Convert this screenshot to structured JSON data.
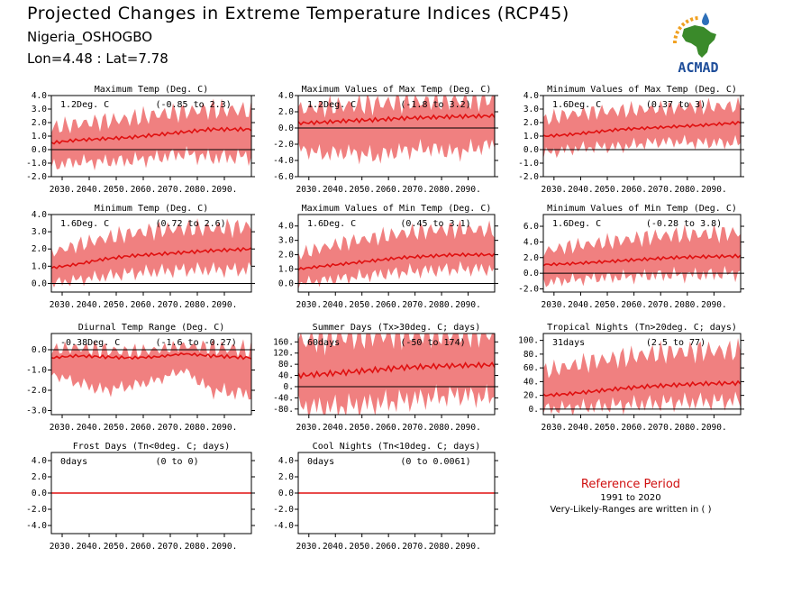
{
  "header": {
    "title": "Projected Changes in Extreme Temperature Indices (RCP45)",
    "station": "Nigeria_OSHOGBO",
    "coords": "Lon=4.48 : Lat=7.78"
  },
  "logo": {
    "text": "ACMAD",
    "colors": {
      "africa": "#3a8a2a",
      "drop": "#2d6fb8",
      "sun": "#f0a020",
      "text": "#1f4e9a"
    }
  },
  "reference": {
    "title": "Reference Period",
    "years": "1991 to 2020",
    "note": "Very-Likely-Ranges are written in ( )"
  },
  "colors": {
    "band": "#f08080",
    "line": "#e01010",
    "zero": "#000000"
  },
  "chart_data": [
    {
      "type": "area",
      "title": "Maximum Temp (Deg. C)",
      "mean_label": "1.2Deg. C",
      "range_label": "(-0.85 to 2.3)",
      "xlim": [
        2026,
        2100
      ],
      "xticks": [
        2030,
        2040,
        2050,
        2060,
        2070,
        2080,
        2090
      ],
      "xtick_labels": [
        "2030.",
        "2040.",
        "2050.",
        "2060.",
        "2070.",
        "2080.",
        "2090."
      ],
      "ylim": [
        -2,
        4
      ],
      "yticks": [
        -2,
        -1,
        0,
        1,
        2,
        3,
        4
      ],
      "ytick_labels": [
        "-2.0",
        "-1.0",
        "0.0",
        "1.0",
        "2.0",
        "3.0",
        "4.0"
      ],
      "x": [
        2026,
        2035,
        2045,
        2055,
        2065,
        2075,
        2085,
        2100
      ],
      "mean": [
        0.5,
        0.7,
        0.8,
        0.9,
        1.1,
        1.3,
        1.5,
        1.5
      ],
      "upper": [
        1.6,
        1.9,
        2.1,
        2.3,
        2.6,
        2.8,
        3.0,
        2.9
      ],
      "lower": [
        -1.2,
        -0.9,
        -0.9,
        -0.8,
        -0.6,
        -0.3,
        -0.6,
        -0.5
      ]
    },
    {
      "type": "area",
      "title": "Maximum Values of Max Temp (Deg. C)",
      "mean_label": "1.2Deg. C",
      "range_label": "(-1.8 to 3.2)",
      "xlim": [
        2026,
        2100
      ],
      "xticks": [
        2030,
        2040,
        2050,
        2060,
        2070,
        2080,
        2090
      ],
      "xtick_labels": [
        "2030.",
        "2040.",
        "2050.",
        "2060.",
        "2070.",
        "2080.",
        "2090."
      ],
      "ylim": [
        -6,
        4
      ],
      "yticks": [
        -6,
        -4,
        -2,
        0,
        2,
        4
      ],
      "ytick_labels": [
        "-6.0",
        "-4.0",
        "-2.0",
        "0.0",
        "2.0",
        "4.0"
      ],
      "x": [
        2026,
        2035,
        2045,
        2055,
        2065,
        2075,
        2085,
        2100
      ],
      "mean": [
        0.6,
        0.7,
        0.9,
        1.0,
        1.2,
        1.3,
        1.4,
        1.5
      ],
      "upper": [
        2.3,
        2.6,
        2.8,
        3.0,
        3.2,
        3.3,
        3.4,
        3.5
      ],
      "lower": [
        -2.5,
        -3.2,
        -3.0,
        -3.5,
        -2.8,
        -2.5,
        -3.0,
        -2.0
      ]
    },
    {
      "type": "area",
      "title": "Minimum Values of Max Temp (Deg. C)",
      "mean_label": "1.6Deg. C",
      "range_label": "(0.37 to 3)",
      "xlim": [
        2026,
        2100
      ],
      "xticks": [
        2030,
        2040,
        2050,
        2060,
        2070,
        2080,
        2090
      ],
      "xtick_labels": [
        "2030.",
        "2040.",
        "2050.",
        "2060.",
        "2070.",
        "2080.",
        "2090."
      ],
      "ylim": [
        -2,
        4
      ],
      "yticks": [
        -2,
        -1,
        0,
        1,
        2,
        3,
        4
      ],
      "ytick_labels": [
        "-2.0",
        "-1.0",
        "0.0",
        "1.0",
        "2.0",
        "3.0",
        "4.0"
      ],
      "x": [
        2026,
        2035,
        2045,
        2055,
        2065,
        2075,
        2085,
        2100
      ],
      "mean": [
        1.0,
        1.1,
        1.3,
        1.5,
        1.6,
        1.7,
        1.8,
        2.0
      ],
      "upper": [
        2.2,
        2.6,
        2.8,
        2.9,
        3.0,
        3.1,
        3.2,
        3.2
      ],
      "lower": [
        -0.3,
        0.0,
        0.2,
        0.2,
        0.5,
        0.6,
        0.5,
        0.5
      ]
    },
    {
      "type": "area",
      "title": "Minimum Temp (Deg. C)",
      "mean_label": "1.6Deg. C",
      "range_label": "(0.72 to 2.6)",
      "xlim": [
        2026,
        2100
      ],
      "xticks": [
        2030,
        2040,
        2050,
        2060,
        2070,
        2080,
        2090
      ],
      "xtick_labels": [
        "2030.",
        "2040.",
        "2050.",
        "2060.",
        "2070.",
        "2080.",
        "2090."
      ],
      "ylim": [
        -0.5,
        4
      ],
      "yticks": [
        0,
        1,
        2,
        3,
        4
      ],
      "ytick_labels": [
        "0.0",
        "1.0",
        "2.0",
        "3.0",
        "4.0"
      ],
      "x": [
        2026,
        2035,
        2045,
        2055,
        2065,
        2075,
        2085,
        2100
      ],
      "mean": [
        0.9,
        1.1,
        1.4,
        1.6,
        1.7,
        1.8,
        1.9,
        2.0
      ],
      "upper": [
        1.8,
        2.2,
        2.6,
        2.9,
        3.1,
        3.2,
        3.2,
        3.3
      ],
      "lower": [
        0.0,
        0.2,
        0.4,
        0.6,
        0.7,
        0.8,
        0.8,
        0.8
      ]
    },
    {
      "type": "area",
      "title": "Maximum Values of Min Temp (Deg. C)",
      "mean_label": "1.6Deg. C",
      "range_label": "(0.45 to 3.1)",
      "xlim": [
        2026,
        2100
      ],
      "xticks": [
        2030,
        2040,
        2050,
        2060,
        2070,
        2080,
        2090
      ],
      "xtick_labels": [
        "2030.",
        "2040.",
        "2050.",
        "2060.",
        "2070.",
        "2080.",
        "2090."
      ],
      "ylim": [
        -0.6,
        4.8
      ],
      "yticks": [
        0,
        1,
        2,
        3,
        4
      ],
      "ytick_labels": [
        "0.0",
        "1.0",
        "2.0",
        "3.0",
        "4.0"
      ],
      "x": [
        2026,
        2035,
        2045,
        2055,
        2065,
        2075,
        2085,
        2100
      ],
      "mean": [
        1.0,
        1.2,
        1.4,
        1.6,
        1.8,
        1.9,
        2.0,
        2.0
      ],
      "upper": [
        2.0,
        2.5,
        2.9,
        3.2,
        3.5,
        3.7,
        3.8,
        3.7
      ],
      "lower": [
        0.0,
        0.2,
        0.4,
        0.6,
        0.8,
        0.9,
        1.0,
        1.0
      ]
    },
    {
      "type": "area",
      "title": "Minimum Values of Min Temp (Deg. C)",
      "mean_label": "1.6Deg. C",
      "range_label": "(-0.28 to 3.8)",
      "xlim": [
        2026,
        2100
      ],
      "xticks": [
        2030,
        2040,
        2050,
        2060,
        2070,
        2080,
        2090
      ],
      "xtick_labels": [
        "2030.",
        "2040.",
        "2050.",
        "2060.",
        "2070.",
        "2080.",
        "2090."
      ],
      "ylim": [
        -2.4,
        7.5
      ],
      "yticks": [
        -2,
        0,
        2,
        4,
        6
      ],
      "ytick_labels": [
        "-2.0",
        "0.0",
        "2.0",
        "4.0",
        "6.0"
      ],
      "x": [
        2026,
        2035,
        2045,
        2055,
        2065,
        2075,
        2085,
        2100
      ],
      "mean": [
        1.1,
        1.2,
        1.4,
        1.6,
        1.8,
        2.0,
        2.1,
        2.2
      ],
      "upper": [
        2.8,
        3.4,
        3.8,
        4.2,
        4.6,
        4.9,
        5.0,
        5.2
      ],
      "lower": [
        -1.2,
        -0.9,
        -0.6,
        -0.5,
        -0.3,
        -0.2,
        -0.2,
        0.0
      ]
    },
    {
      "type": "area",
      "title": "Diurnal Temp Range (Deg. C)",
      "mean_label": "-0.38Deg. C",
      "range_label": "(-1.6 to -0.27)",
      "xlim": [
        2026,
        2100
      ],
      "xticks": [
        2030,
        2040,
        2050,
        2060,
        2070,
        2080,
        2090
      ],
      "xtick_labels": [
        "2030.",
        "2040.",
        "2050.",
        "2060.",
        "2070.",
        "2080.",
        "2090."
      ],
      "ylim": [
        -3.2,
        0.8
      ],
      "yticks": [
        -3,
        -2,
        -1,
        0
      ],
      "ytick_labels": [
        "-3.0",
        "-2.0",
        "-1.0",
        "0.0"
      ],
      "x": [
        2026,
        2035,
        2045,
        2055,
        2065,
        2075,
        2085,
        2100
      ],
      "mean": [
        -0.4,
        -0.3,
        -0.35,
        -0.4,
        -0.35,
        -0.2,
        -0.3,
        -0.4
      ],
      "upper": [
        0.0,
        0.1,
        0.0,
        -0.1,
        0.0,
        0.2,
        0.1,
        0.0
      ],
      "lower": [
        -1.2,
        -1.6,
        -2.0,
        -1.8,
        -1.5,
        -1.0,
        -2.0,
        -2.2
      ]
    },
    {
      "type": "area",
      "title": "Summer Days (Tx>30deg. C; days)",
      "mean_label": "60days",
      "range_label": "(-50 to 174)",
      "xlim": [
        2026,
        2100
      ],
      "xticks": [
        2030,
        2040,
        2050,
        2060,
        2070,
        2080,
        2090
      ],
      "xtick_labels": [
        "2030.",
        "2040.",
        "2050.",
        "2060.",
        "2070.",
        "2080.",
        "2090."
      ],
      "ylim": [
        -100,
        190
      ],
      "yticks": [
        -80,
        -40,
        0,
        40,
        80,
        120,
        160
      ],
      "ytick_labels": [
        "-80.",
        "-40.",
        "0.",
        "40.",
        "80.",
        "120.",
        "160."
      ],
      "x": [
        2026,
        2035,
        2045,
        2055,
        2065,
        2075,
        2085,
        2100
      ],
      "mean": [
        40,
        45,
        52,
        60,
        68,
        72,
        75,
        78
      ],
      "upper": [
        160,
        172,
        180,
        185,
        188,
        188,
        188,
        188
      ],
      "lower": [
        -70,
        -75,
        -70,
        -60,
        -50,
        -40,
        -30,
        -40
      ]
    },
    {
      "type": "area",
      "title": "Tropical Nights (Tn>20deg. C; days)",
      "mean_label": "31days",
      "range_label": "(2.5 to 77)",
      "xlim": [
        2026,
        2100
      ],
      "xticks": [
        2030,
        2040,
        2050,
        2060,
        2070,
        2080,
        2090
      ],
      "xtick_labels": [
        "2030.",
        "2040.",
        "2050.",
        "2060.",
        "2070.",
        "2080.",
        "2090."
      ],
      "ylim": [
        -8,
        110
      ],
      "yticks": [
        0,
        20,
        40,
        60,
        80,
        100
      ],
      "ytick_labels": [
        "0.",
        "20.",
        "40.",
        "60.",
        "80.",
        "100."
      ],
      "x": [
        2026,
        2035,
        2045,
        2055,
        2065,
        2075,
        2085,
        2100
      ],
      "mean": [
        20,
        22,
        26,
        30,
        33,
        35,
        37,
        38
      ],
      "upper": [
        55,
        62,
        70,
        75,
        80,
        83,
        85,
        85
      ],
      "lower": [
        0,
        2,
        4,
        6,
        8,
        10,
        11,
        12
      ]
    },
    {
      "type": "area",
      "title": "Frost Days (Tn<0deg. C; days)",
      "mean_label": "0days",
      "range_label": "(0 to 0)",
      "xlim": [
        2026,
        2100
      ],
      "xticks": [
        2030,
        2040,
        2050,
        2060,
        2070,
        2080,
        2090
      ],
      "xtick_labels": [
        "2030.",
        "2040.",
        "2050.",
        "2060.",
        "2070.",
        "2080.",
        "2090."
      ],
      "ylim": [
        -5,
        5
      ],
      "yticks": [
        -4,
        -2,
        0,
        2,
        4
      ],
      "ytick_labels": [
        "-4.0",
        "-2.0",
        "0.0",
        "2.0",
        "4.0"
      ],
      "x": [
        2026,
        2100
      ],
      "mean": [
        0,
        0
      ],
      "upper": [
        0,
        0
      ],
      "lower": [
        0,
        0
      ]
    },
    {
      "type": "area",
      "title": "Cool Nights (Tn<10deg. C; days)",
      "mean_label": "0days",
      "range_label": "(0 to 0.0061)",
      "xlim": [
        2026,
        2100
      ],
      "xticks": [
        2030,
        2040,
        2050,
        2060,
        2070,
        2080,
        2090
      ],
      "xtick_labels": [
        "2030.",
        "2040.",
        "2050.",
        "2060.",
        "2070.",
        "2080.",
        "2090."
      ],
      "ylim": [
        -5,
        5
      ],
      "yticks": [
        -4,
        -2,
        0,
        2,
        4
      ],
      "ytick_labels": [
        "-4.0",
        "-2.0",
        "0.0",
        "2.0",
        "4.0"
      ],
      "x": [
        2026,
        2100
      ],
      "mean": [
        0,
        0
      ],
      "upper": [
        0.006,
        0.006
      ],
      "lower": [
        0,
        0
      ]
    }
  ]
}
